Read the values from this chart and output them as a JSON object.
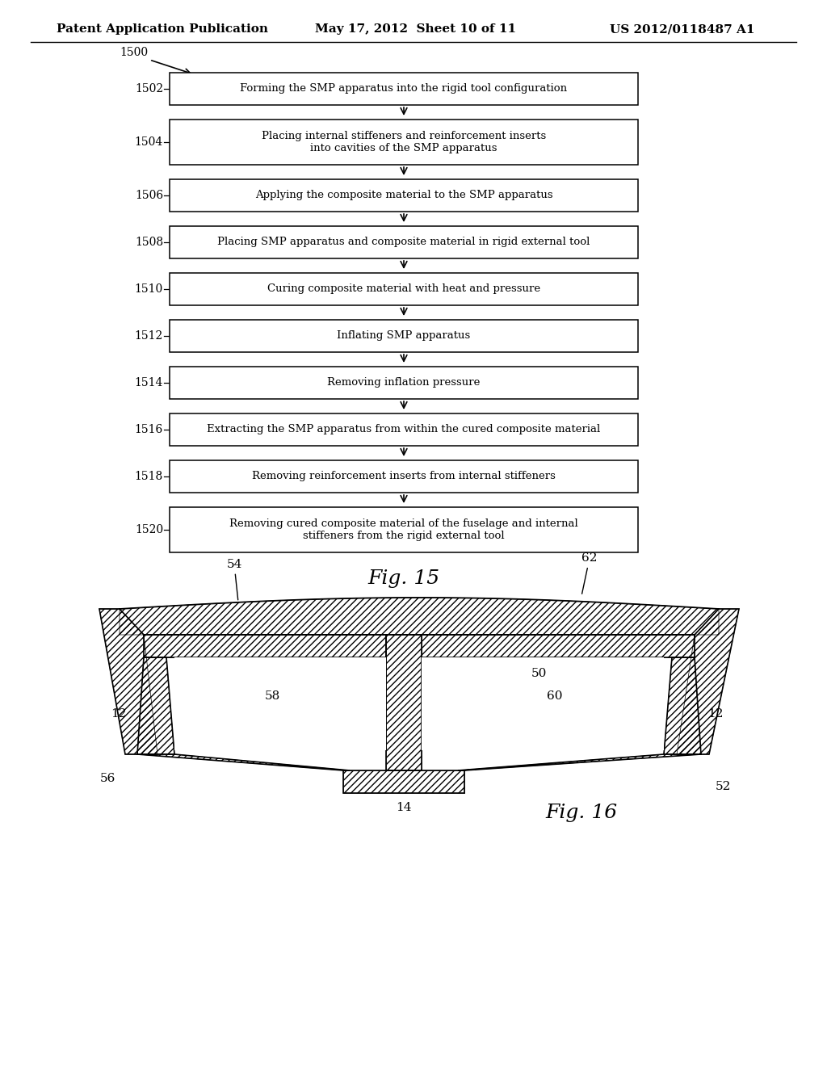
{
  "header_left": "Patent Application Publication",
  "header_mid": "May 17, 2012  Sheet 10 of 11",
  "header_right": "US 2012/0118487 A1",
  "steps": [
    {
      "label": "1502",
      "text": "Forming the SMP apparatus into the rigid tool configuration",
      "multiline": false
    },
    {
      "label": "1504",
      "text": "Placing internal stiffeners and reinforcement inserts\ninto cavities of the SMP apparatus",
      "multiline": true
    },
    {
      "label": "1506",
      "text": "Applying the composite material to the SMP apparatus",
      "multiline": false
    },
    {
      "label": "1508",
      "text": "Placing SMP apparatus and composite material in rigid external tool",
      "multiline": false
    },
    {
      "label": "1510",
      "text": "Curing composite material with heat and pressure",
      "multiline": false
    },
    {
      "label": "1512",
      "text": "Inflating SMP apparatus",
      "multiline": false
    },
    {
      "label": "1514",
      "text": "Removing inflation pressure",
      "multiline": false
    },
    {
      "label": "1516",
      "text": "Extracting the SMP apparatus from within the cured composite material",
      "multiline": false
    },
    {
      "label": "1518",
      "text": "Removing reinforcement inserts from internal stiffeners",
      "multiline": false
    },
    {
      "label": "1520",
      "text": "Removing cured composite material of the fuselage and internal\nstiffeners from the rigid external tool",
      "multiline": true
    }
  ],
  "fig15_label": "Fig. 15",
  "fig16_label": "Fig. 16",
  "bg_color": "#ffffff",
  "box_color": "#ffffff",
  "box_edge_color": "#000000",
  "text_color": "#000000"
}
